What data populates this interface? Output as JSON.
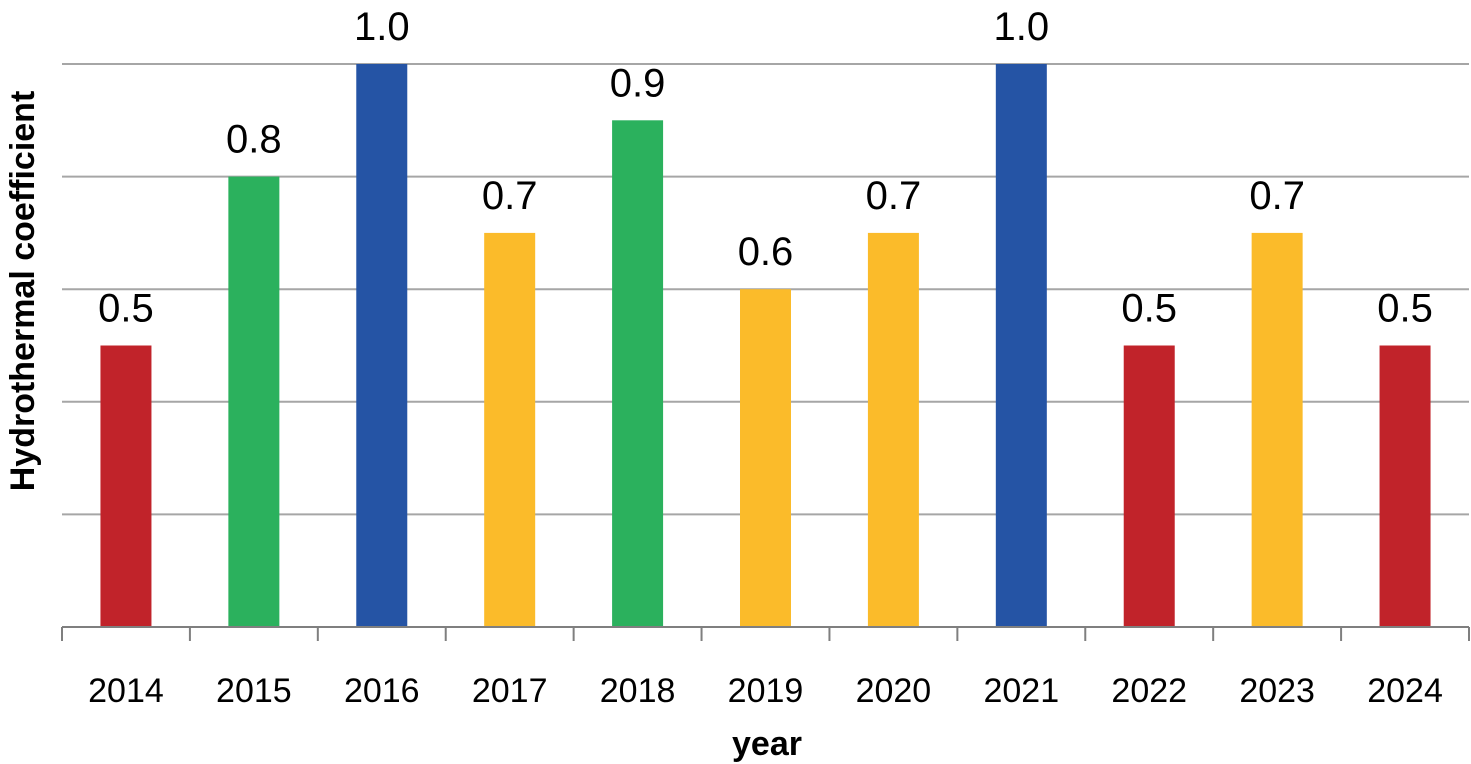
{
  "chart_data": {
    "type": "bar",
    "title": "",
    "xlabel": "year",
    "ylabel": "Hydrothermal coefficient",
    "categories": [
      "2014",
      "2015",
      "2016",
      "2017",
      "2018",
      "2019",
      "2020",
      "2021",
      "2022",
      "2023",
      "2024"
    ],
    "values": [
      0.5,
      0.8,
      1.0,
      0.7,
      0.9,
      0.6,
      0.7,
      1.0,
      0.5,
      0.7,
      0.5
    ],
    "value_labels": [
      "0.5",
      "0.8",
      "1.0",
      "0.7",
      "0.9",
      "0.6",
      "0.7",
      "1.0",
      "0.5",
      "0.7",
      "0.5"
    ],
    "bar_colors": [
      "#c1232a",
      "#2bb15d",
      "#2554a5",
      "#fbbb2a",
      "#2bb15d",
      "#fbbb2a",
      "#fbbb2a",
      "#2554a5",
      "#c1232a",
      "#fbbb2a",
      "#c1232a"
    ],
    "ylim": [
      0,
      1.0
    ],
    "y_gridlines": [
      0.2,
      0.4,
      0.6,
      0.8,
      1.0
    ],
    "y_tick_labels_shown": false,
    "grid": true,
    "legend": "none"
  }
}
